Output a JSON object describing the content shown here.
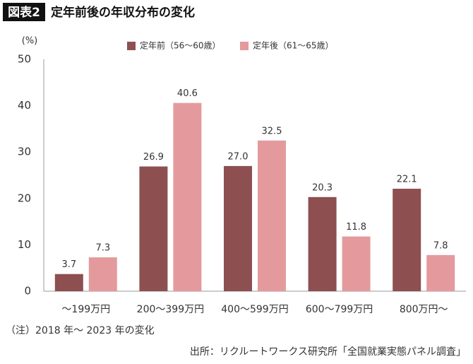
{
  "chart_data": {
    "type": "bar",
    "figure_label": "図表2",
    "title": "定年前後の年収分布の変化",
    "ylabel": "(%)",
    "categories": [
      "～199万円",
      "200～399万円",
      "400～599万円",
      "600～799万円",
      "800万円～"
    ],
    "series": [
      {
        "name": "定年前（56～60歳）",
        "color": "#8e4f51",
        "values": [
          3.7,
          26.9,
          27,
          20.3,
          22.1
        ],
        "value_labels": [
          "3.7",
          "26.9",
          "27.0",
          "20.3",
          "22.1"
        ]
      },
      {
        "name": "定年後（61～65歳）",
        "color": "#e49a9c",
        "values": [
          7.3,
          40.6,
          32.5,
          11.8,
          7.8
        ],
        "value_labels": [
          "7.3",
          "40.6",
          "32.5",
          "11.8",
          "7.8"
        ]
      }
    ],
    "ylim": [
      0,
      50
    ],
    "yticks": [
      0,
      10,
      20,
      30,
      40,
      50
    ],
    "grid": false,
    "note": "（注）2018 年～ 2023 年の変化",
    "source": "出所：リクルートワークス研究所「全国就業実態パネル調査」"
  }
}
